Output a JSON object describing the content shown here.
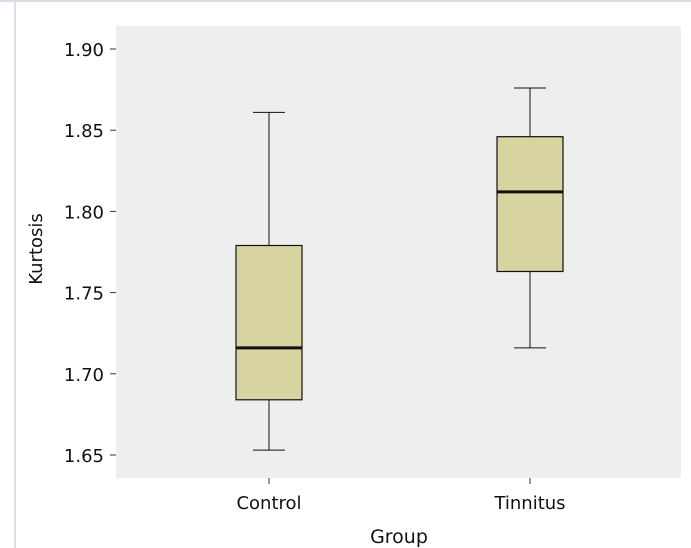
{
  "chart_data": {
    "type": "box",
    "title": "",
    "xlabel": "Group",
    "ylabel": "Kurtosis",
    "categories": [
      "Control",
      "Tinnitus"
    ],
    "boxes": [
      {
        "label": "Control",
        "min": 1.653,
        "q1": 1.684,
        "median": 1.716,
        "q3": 1.779,
        "max": 1.861
      },
      {
        "label": "Tinnitus",
        "min": 1.716,
        "q1": 1.763,
        "median": 1.812,
        "q3": 1.846,
        "max": 1.876
      }
    ],
    "yticks": [
      "1.65",
      "1.70",
      "1.75",
      "1.80",
      "1.85",
      "1.90"
    ],
    "ylim": [
      1.635,
      1.9
    ],
    "grid": false,
    "colors": {
      "panel_bg": "#eeeeee",
      "box_fill": "#d8d4a2",
      "stroke": "#111111"
    }
  }
}
